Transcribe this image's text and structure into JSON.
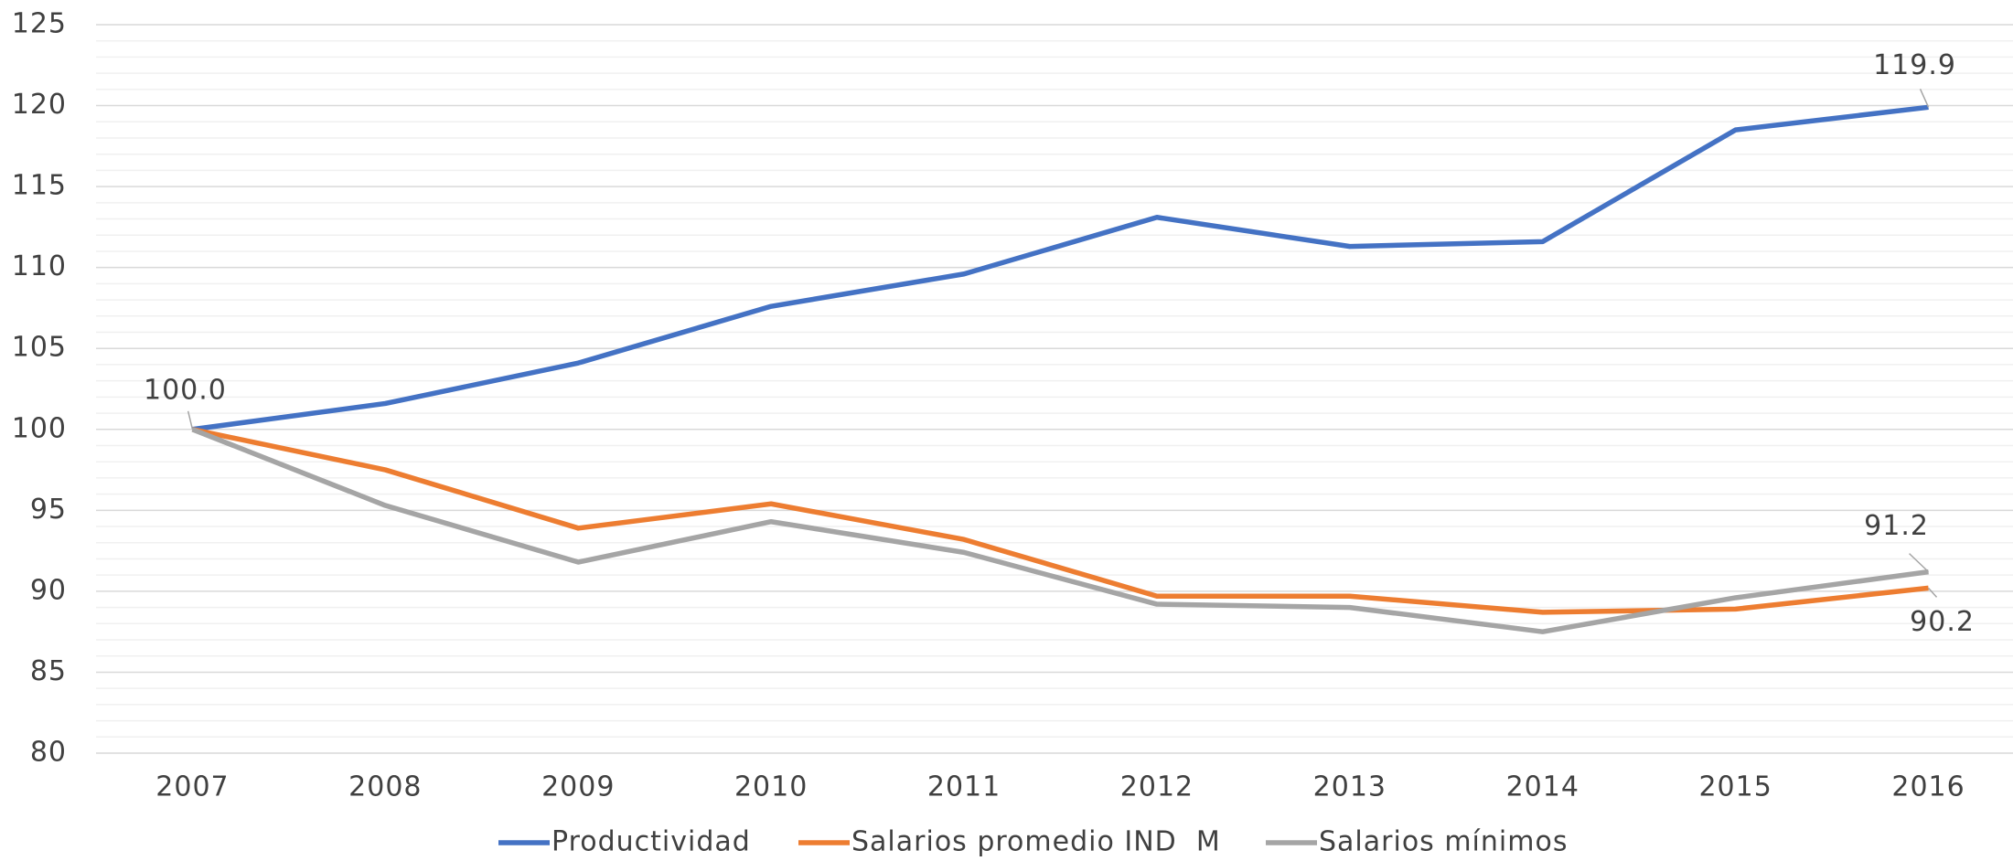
{
  "chart_data": {
    "type": "line",
    "categories": [
      "2007",
      "2008",
      "2009",
      "2010",
      "2011",
      "2012",
      "2013",
      "2014",
      "2015",
      "2016"
    ],
    "series": [
      {
        "name": "Productividad",
        "color": "#4472c4",
        "values": [
          100,
          101.6,
          104.1,
          107.6,
          109.6,
          113.1,
          111.3,
          111.6,
          118.5,
          119.9
        ],
        "value_labels": [
          null,
          null,
          null,
          null,
          null,
          null,
          null,
          null,
          null,
          "119.9"
        ]
      },
      {
        "name": "Salarios promedio IND  M",
        "color": "#ed7d31",
        "values": [
          100,
          97.5,
          93.9,
          95.4,
          93.2,
          89.7,
          89.7,
          88.7,
          88.9,
          90.2
        ],
        "value_labels": [
          null,
          null,
          null,
          null,
          null,
          null,
          null,
          null,
          null,
          "90.2"
        ]
      },
      {
        "name": "Salarios mínimos",
        "color": "#a5a5a5",
        "values": [
          100,
          95.3,
          91.8,
          94.3,
          92.4,
          89.2,
          89.0,
          87.5,
          89.6,
          91.2
        ],
        "value_labels": [
          "100.0",
          null,
          null,
          null,
          null,
          null,
          null,
          null,
          null,
          "91.2"
        ]
      }
    ],
    "ylim": [
      80,
      125
    ],
    "yticks": [
      80,
      85,
      90,
      95,
      100,
      105,
      110,
      115,
      120,
      125
    ],
    "minor_yticks": [
      81,
      82,
      83,
      84,
      86,
      87,
      88,
      89,
      91,
      92,
      93,
      94,
      96,
      97,
      98,
      99,
      101,
      102,
      103,
      104,
      106,
      107,
      108,
      109,
      111,
      112,
      113,
      114,
      116,
      117,
      118,
      119,
      121,
      122,
      123,
      124
    ],
    "grid": true,
    "legend": "bottom"
  }
}
